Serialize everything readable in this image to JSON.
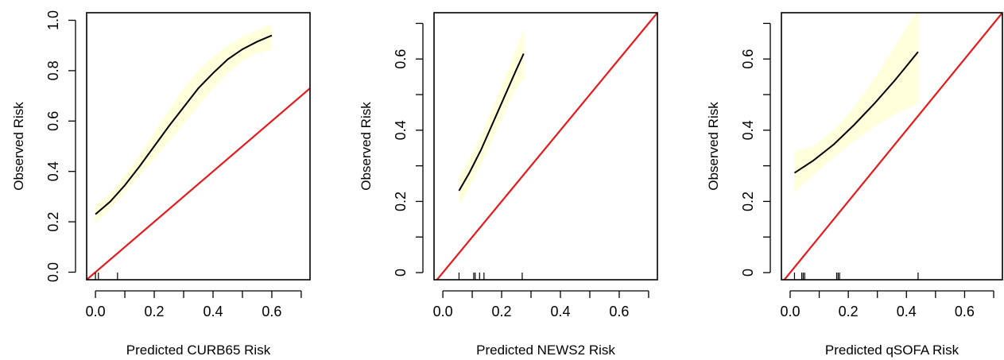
{
  "colors": {
    "band": "#ffffdc",
    "curve": "#000000",
    "reference_line": "#e41a1c",
    "axes": "#000000"
  },
  "chart_data": [
    {
      "type": "line",
      "xlabel": "Predicted CURB65 Risk",
      "ylabel": "Observed Risk",
      "xlim": [
        -0.03,
        0.73
      ],
      "ylim": [
        -0.03,
        1.03
      ],
      "x_ticks": [
        "0.0",
        "0.2",
        "0.4",
        "0.6"
      ],
      "y_ticks": [
        "0.0",
        "0.2",
        "0.4",
        "0.6",
        "0.8",
        "1.0"
      ],
      "x_tick_values": [
        0,
        0.1,
        0.2,
        0.3,
        0.4,
        0.5,
        0.6,
        0.7
      ],
      "x_tick_labels": [
        "0.0",
        "",
        "0.2",
        "",
        "0.4",
        "",
        "0.6",
        ""
      ],
      "y_tick_values": [
        0,
        0.2,
        0.4,
        0.6,
        0.8,
        1.0
      ],
      "series": [
        {
          "x": [
            0.0,
            0.05,
            0.1,
            0.15,
            0.2,
            0.25,
            0.3,
            0.35,
            0.4,
            0.45,
            0.5,
            0.55,
            0.6
          ],
          "y": [
            0.23,
            0.28,
            0.345,
            0.42,
            0.5,
            0.58,
            0.655,
            0.73,
            0.79,
            0.845,
            0.885,
            0.915,
            0.94
          ]
        }
      ],
      "confidence_band": {
        "x": [
          0.0,
          0.05,
          0.1,
          0.15,
          0.2,
          0.25,
          0.3,
          0.35,
          0.4,
          0.45,
          0.5,
          0.55,
          0.6
        ],
        "lower": [
          0.195,
          0.25,
          0.315,
          0.385,
          0.45,
          0.52,
          0.59,
          0.66,
          0.73,
          0.79,
          0.84,
          0.87,
          0.885
        ],
        "upper": [
          0.265,
          0.315,
          0.385,
          0.465,
          0.555,
          0.645,
          0.73,
          0.8,
          0.855,
          0.9,
          0.935,
          0.96,
          0.985
        ]
      },
      "reference_line": {
        "slope": 1,
        "intercept": 0
      },
      "rug": [
        0.0,
        0.01,
        0.075
      ]
    },
    {
      "type": "line",
      "xlabel": "Predicted NEWS2 Risk",
      "ylabel": "Observed Risk",
      "xlim": [
        -0.03,
        0.73
      ],
      "ylim": [
        -0.02,
        0.73
      ],
      "x_ticks": [
        "0.0",
        "0.2",
        "0.4",
        "0.6"
      ],
      "y_ticks": [
        "0",
        "0.2",
        "0.4",
        "0.6"
      ],
      "x_tick_values": [
        0,
        0.1,
        0.2,
        0.3,
        0.4,
        0.5,
        0.6,
        0.7
      ],
      "x_tick_labels": [
        "0.0",
        "",
        "0.2",
        "",
        "0.4",
        "",
        "0.6",
        ""
      ],
      "y_tick_values": [
        0,
        0.1,
        0.2,
        0.3,
        0.4,
        0.5,
        0.6,
        0.7
      ],
      "y_tick_labels": [
        "0",
        "",
        "0.2",
        "",
        "0.4",
        "",
        "0.6",
        ""
      ],
      "series": [
        {
          "x": [
            0.055,
            0.09,
            0.13,
            0.17,
            0.21,
            0.25,
            0.275
          ],
          "y": [
            0.23,
            0.28,
            0.345,
            0.42,
            0.495,
            0.57,
            0.615
          ]
        }
      ],
      "confidence_band": {
        "x": [
          0.055,
          0.09,
          0.13,
          0.17,
          0.21,
          0.25,
          0.275
        ],
        "lower": [
          0.19,
          0.24,
          0.305,
          0.375,
          0.45,
          0.52,
          0.545
        ],
        "upper": [
          0.27,
          0.32,
          0.385,
          0.465,
          0.545,
          0.63,
          0.685
        ]
      },
      "reference_line": {
        "slope": 1,
        "intercept": 0
      },
      "rug": [
        0.055,
        0.105,
        0.11,
        0.125,
        0.14,
        0.27
      ]
    },
    {
      "type": "line",
      "xlabel": "Predicted qSOFA Risk",
      "ylabel": "Observed Risk",
      "xlim": [
        -0.03,
        0.73
      ],
      "ylim": [
        -0.02,
        0.73
      ],
      "x_ticks": [
        "0.0",
        "0.2",
        "0.4",
        "0.6"
      ],
      "y_ticks": [
        "0",
        "0.2",
        "0.4",
        "0.6"
      ],
      "x_tick_values": [
        0,
        0.1,
        0.2,
        0.3,
        0.4,
        0.5,
        0.6,
        0.7
      ],
      "x_tick_labels": [
        "0.0",
        "",
        "0.2",
        "",
        "0.4",
        "",
        "0.6",
        ""
      ],
      "y_tick_values": [
        0,
        0.1,
        0.2,
        0.3,
        0.4,
        0.5,
        0.6,
        0.7
      ],
      "y_tick_labels": [
        "0",
        "",
        "0.2",
        "",
        "0.4",
        "",
        "0.6",
        ""
      ],
      "series": [
        {
          "x": [
            0.015,
            0.08,
            0.15,
            0.22,
            0.29,
            0.36,
            0.44
          ],
          "y": [
            0.28,
            0.315,
            0.36,
            0.415,
            0.475,
            0.54,
            0.62
          ]
        }
      ],
      "confidence_band": {
        "x": [
          0.015,
          0.08,
          0.15,
          0.22,
          0.29,
          0.36,
          0.44
        ],
        "lower": [
          0.225,
          0.275,
          0.325,
          0.37,
          0.41,
          0.445,
          0.475
        ],
        "upper": [
          0.34,
          0.355,
          0.4,
          0.465,
          0.545,
          0.635,
          0.74
        ]
      },
      "reference_line": {
        "slope": 1,
        "intercept": 0
      },
      "rug": [
        0.015,
        0.04,
        0.045,
        0.05,
        0.16,
        0.165,
        0.17,
        0.44
      ]
    }
  ]
}
